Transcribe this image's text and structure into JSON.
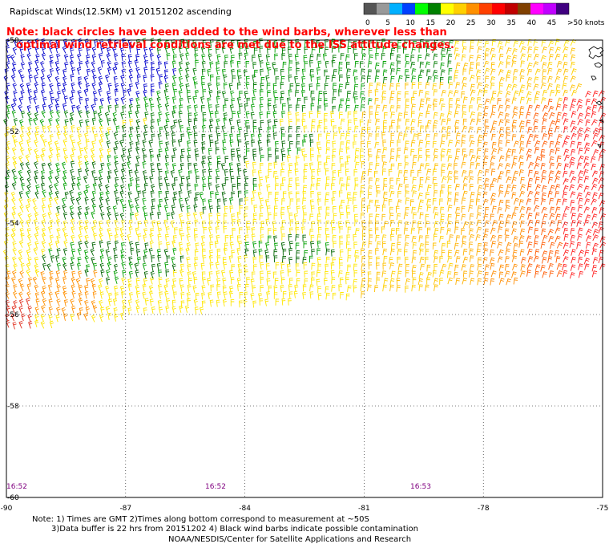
{
  "title": "Rapidscat Winds(12.5KM) v1 20151202 ascending",
  "note": {
    "line1": "Note: black circles have been added to the wind barbs, wherever less than",
    "line2": "optimal wind retrieval conditions are met due to the ISS attitude changes."
  },
  "legend": {
    "colors": [
      "#555555",
      "#999999",
      "#00b0ff",
      "#0040ff",
      "#00ff00",
      "#008000",
      "#ffff00",
      "#ffd000",
      "#ff9000",
      "#ff4000",
      "#ff0000",
      "#c00000",
      "#804000",
      "#ff00ff",
      "#c000ff",
      "#400080"
    ],
    "labels": [
      "0",
      "5",
      "10",
      "15",
      "20",
      "25",
      "30",
      "35",
      "40",
      "45",
      ">50 knots"
    ]
  },
  "map": {
    "lon_ticks": [
      "-90",
      "-87",
      "-84",
      "-81",
      "-78",
      "-75"
    ],
    "lat_ticks": [
      "-50",
      "-52",
      "-54",
      "-56",
      "-58",
      "-60"
    ],
    "lon_range": [
      -90,
      -75
    ],
    "lat_range": [
      -50,
      -60
    ],
    "times": [
      "16:52",
      "16:52",
      "16:53"
    ],
    "gridlines": true
  },
  "footnote": {
    "line1": "Note: 1) Times are GMT 2)Times along bottom correspond to measurement at ~50S",
    "line2": "3)Data buffer is 22 hrs from 20151202 4) Black wind barbs indicate possible contamination"
  },
  "credit": "NOAA/NESDIS/Center for Satellite Applications and Research"
}
